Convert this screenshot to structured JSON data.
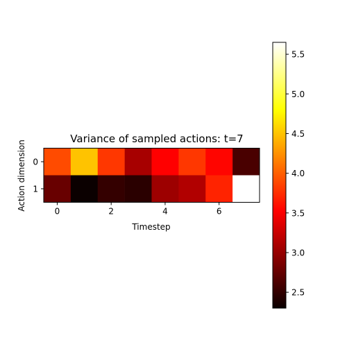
{
  "chart_data": {
    "type": "heatmap",
    "title": "Variance of sampled actions: t=7",
    "xlabel": "Timestep",
    "ylabel": "Action dimension",
    "x_categories": [
      0,
      1,
      2,
      3,
      4,
      5,
      6,
      7
    ],
    "y_categories": [
      0,
      1
    ],
    "x_tick_labels": [
      "0",
      "2",
      "4",
      "6"
    ],
    "y_tick_labels": [
      "0",
      "1"
    ],
    "values": [
      [
        3.9,
        4.5,
        3.8,
        3.05,
        3.5,
        3.8,
        3.55,
        2.6
      ],
      [
        2.75,
        2.3,
        2.5,
        2.45,
        3.0,
        3.1,
        3.7,
        5.65
      ]
    ],
    "colormap": "hot",
    "colorbar": {
      "vmin": 2.3,
      "vmax": 5.65,
      "ticks": [
        2.5,
        3.0,
        3.5,
        4.0,
        4.5,
        5.0,
        5.5
      ],
      "tick_labels": [
        "2.5",
        "3.0",
        "3.5",
        "4.0",
        "4.5",
        "5.0",
        "5.5"
      ]
    }
  }
}
